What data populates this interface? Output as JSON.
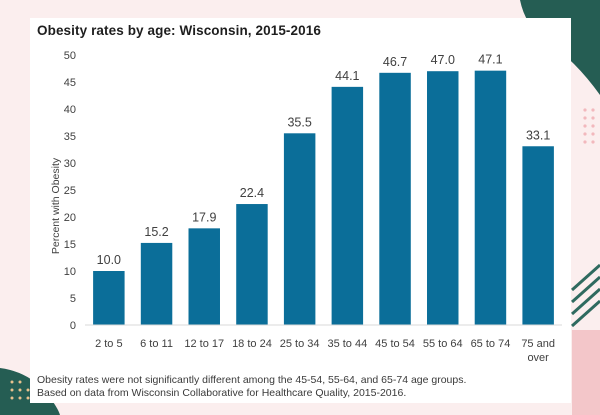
{
  "colors": {
    "bar": "#0b6e99",
    "page_bg": "#fbeeee",
    "deco_dark": "#255d53",
    "deco_pink": "#f3c6c9"
  },
  "chart_data": {
    "type": "bar",
    "title": "Obesity rates by age: Wisconsin, 2015-2016",
    "ylabel": "Percent with Obesity",
    "xlabel": "",
    "ylim": [
      0,
      50
    ],
    "yticks": [
      0,
      5,
      10,
      15,
      20,
      25,
      30,
      35,
      40,
      45,
      50
    ],
    "categories": [
      [
        "2 to 5"
      ],
      [
        "6 to 11"
      ],
      [
        "12 to 17"
      ],
      [
        "18 to 24"
      ],
      [
        "25 to 34"
      ],
      [
        "35 to 44"
      ],
      [
        "45 to 54"
      ],
      [
        "55 to 64"
      ],
      [
        "65 to 74"
      ],
      [
        "75 and",
        "over"
      ]
    ],
    "values": [
      10.0,
      15.2,
      17.9,
      22.4,
      35.5,
      44.1,
      46.7,
      47.0,
      47.1,
      33.1
    ],
    "value_labels": [
      "10.0",
      "15.2",
      "17.9",
      "22.4",
      "35.5",
      "44.1",
      "46.7",
      "47.0",
      "47.1",
      "33.1"
    ],
    "grid": false,
    "legend": "none"
  },
  "notes": {
    "line1": "Obesity rates were not significantly different among the 45-54, 55-64, and 65-74 age groups.",
    "line2": "Based on data from Wisconsin Collaborative for Healthcare Quality, 2015-2016."
  }
}
